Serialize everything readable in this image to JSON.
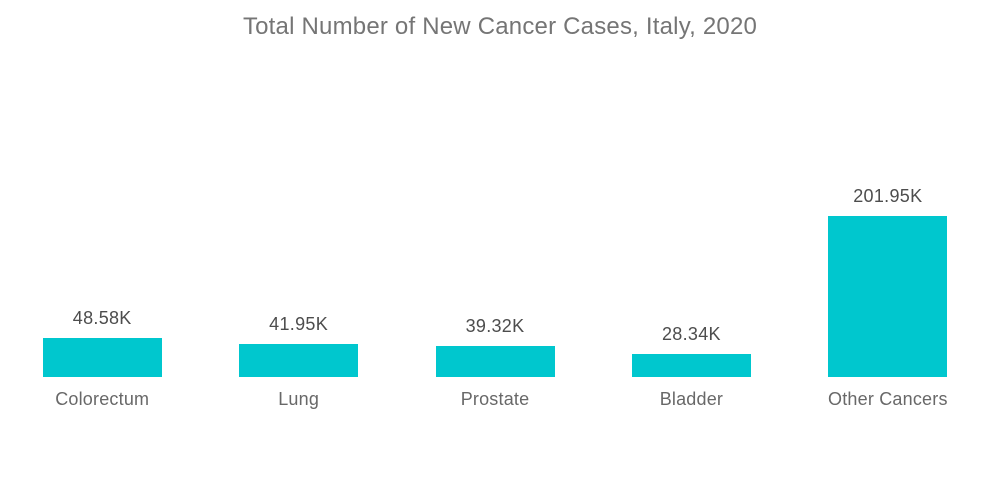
{
  "title": "Total Number of New Cancer Cases, Italy, 2020",
  "chart_data": {
    "type": "bar",
    "title": "Total Number of New Cancer Cases, Italy, 2020",
    "categories": [
      "Colorectum",
      "Lung",
      "Prostate",
      "Bladder",
      "Other Cancers"
    ],
    "values_k": [
      48.58,
      41.95,
      39.32,
      28.34,
      201.95
    ],
    "unit": "K",
    "points": [
      {
        "category": "Colorectum",
        "value_k": 48.58,
        "label": "48.58K"
      },
      {
        "category": "Lung",
        "value_k": 41.95,
        "label": "41.95K"
      },
      {
        "category": "Prostate",
        "value_k": 39.32,
        "label": "39.32K"
      },
      {
        "category": "Bladder",
        "value_k": 28.34,
        "label": "28.34K"
      },
      {
        "category": "Other Cancers",
        "value_k": 201.95,
        "label": "201.95K"
      }
    ],
    "xlabel": "",
    "ylabel": "",
    "ylim": [
      0,
      210
    ],
    "grid": false,
    "legend": "none",
    "value_labels_position": "above-bars"
  },
  "colors": {
    "bar": "#00C7CE",
    "title_text": "#757575",
    "value_text": "#4D4D4D",
    "category_text": "#686868",
    "background": "#FFFFFF"
  }
}
